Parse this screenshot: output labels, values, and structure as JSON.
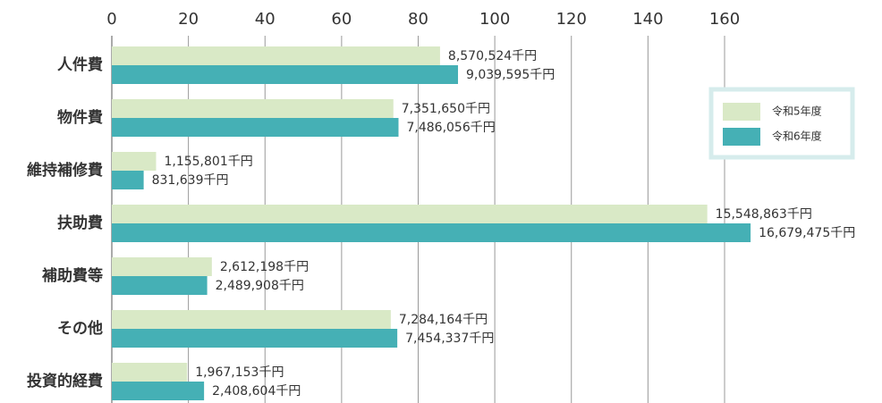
{
  "chart_data": {
    "type": "barh",
    "categories": [
      "人件費",
      "物件費",
      "維持補修費",
      "扶助費",
      "補助費等",
      "その他",
      "投資的経費"
    ],
    "series": [
      {
        "name": "令和5年度",
        "color": "#d9e9c6",
        "values": [
          85.70524,
          73.5165,
          11.55801,
          155.48863,
          26.12198,
          72.84164,
          19.67153
        ],
        "value_labels": [
          "8,570,524千円",
          "7,351,650千円",
          "1,155,801千円",
          "15,548,863千円",
          "2,612,198千円",
          "7,284,164千円",
          "1,967,153千円"
        ]
      },
      {
        "name": "令和6年度",
        "color": "#45b0b5",
        "values": [
          90.39595,
          74.86056,
          8.31639,
          166.79475,
          24.89908,
          74.54337,
          24.08604
        ],
        "value_labels": [
          "9,039,595千円",
          "7,486,056千円",
          "831,639千円",
          "16,679,475千円",
          "2,489,908千円",
          "7,454,337千円",
          "2,408,604千円"
        ]
      }
    ],
    "xlim": [
      0,
      160
    ],
    "xticks": [
      0,
      20,
      40,
      60,
      80,
      100,
      120,
      140,
      160
    ],
    "grid": true,
    "legend": "upper right"
  }
}
